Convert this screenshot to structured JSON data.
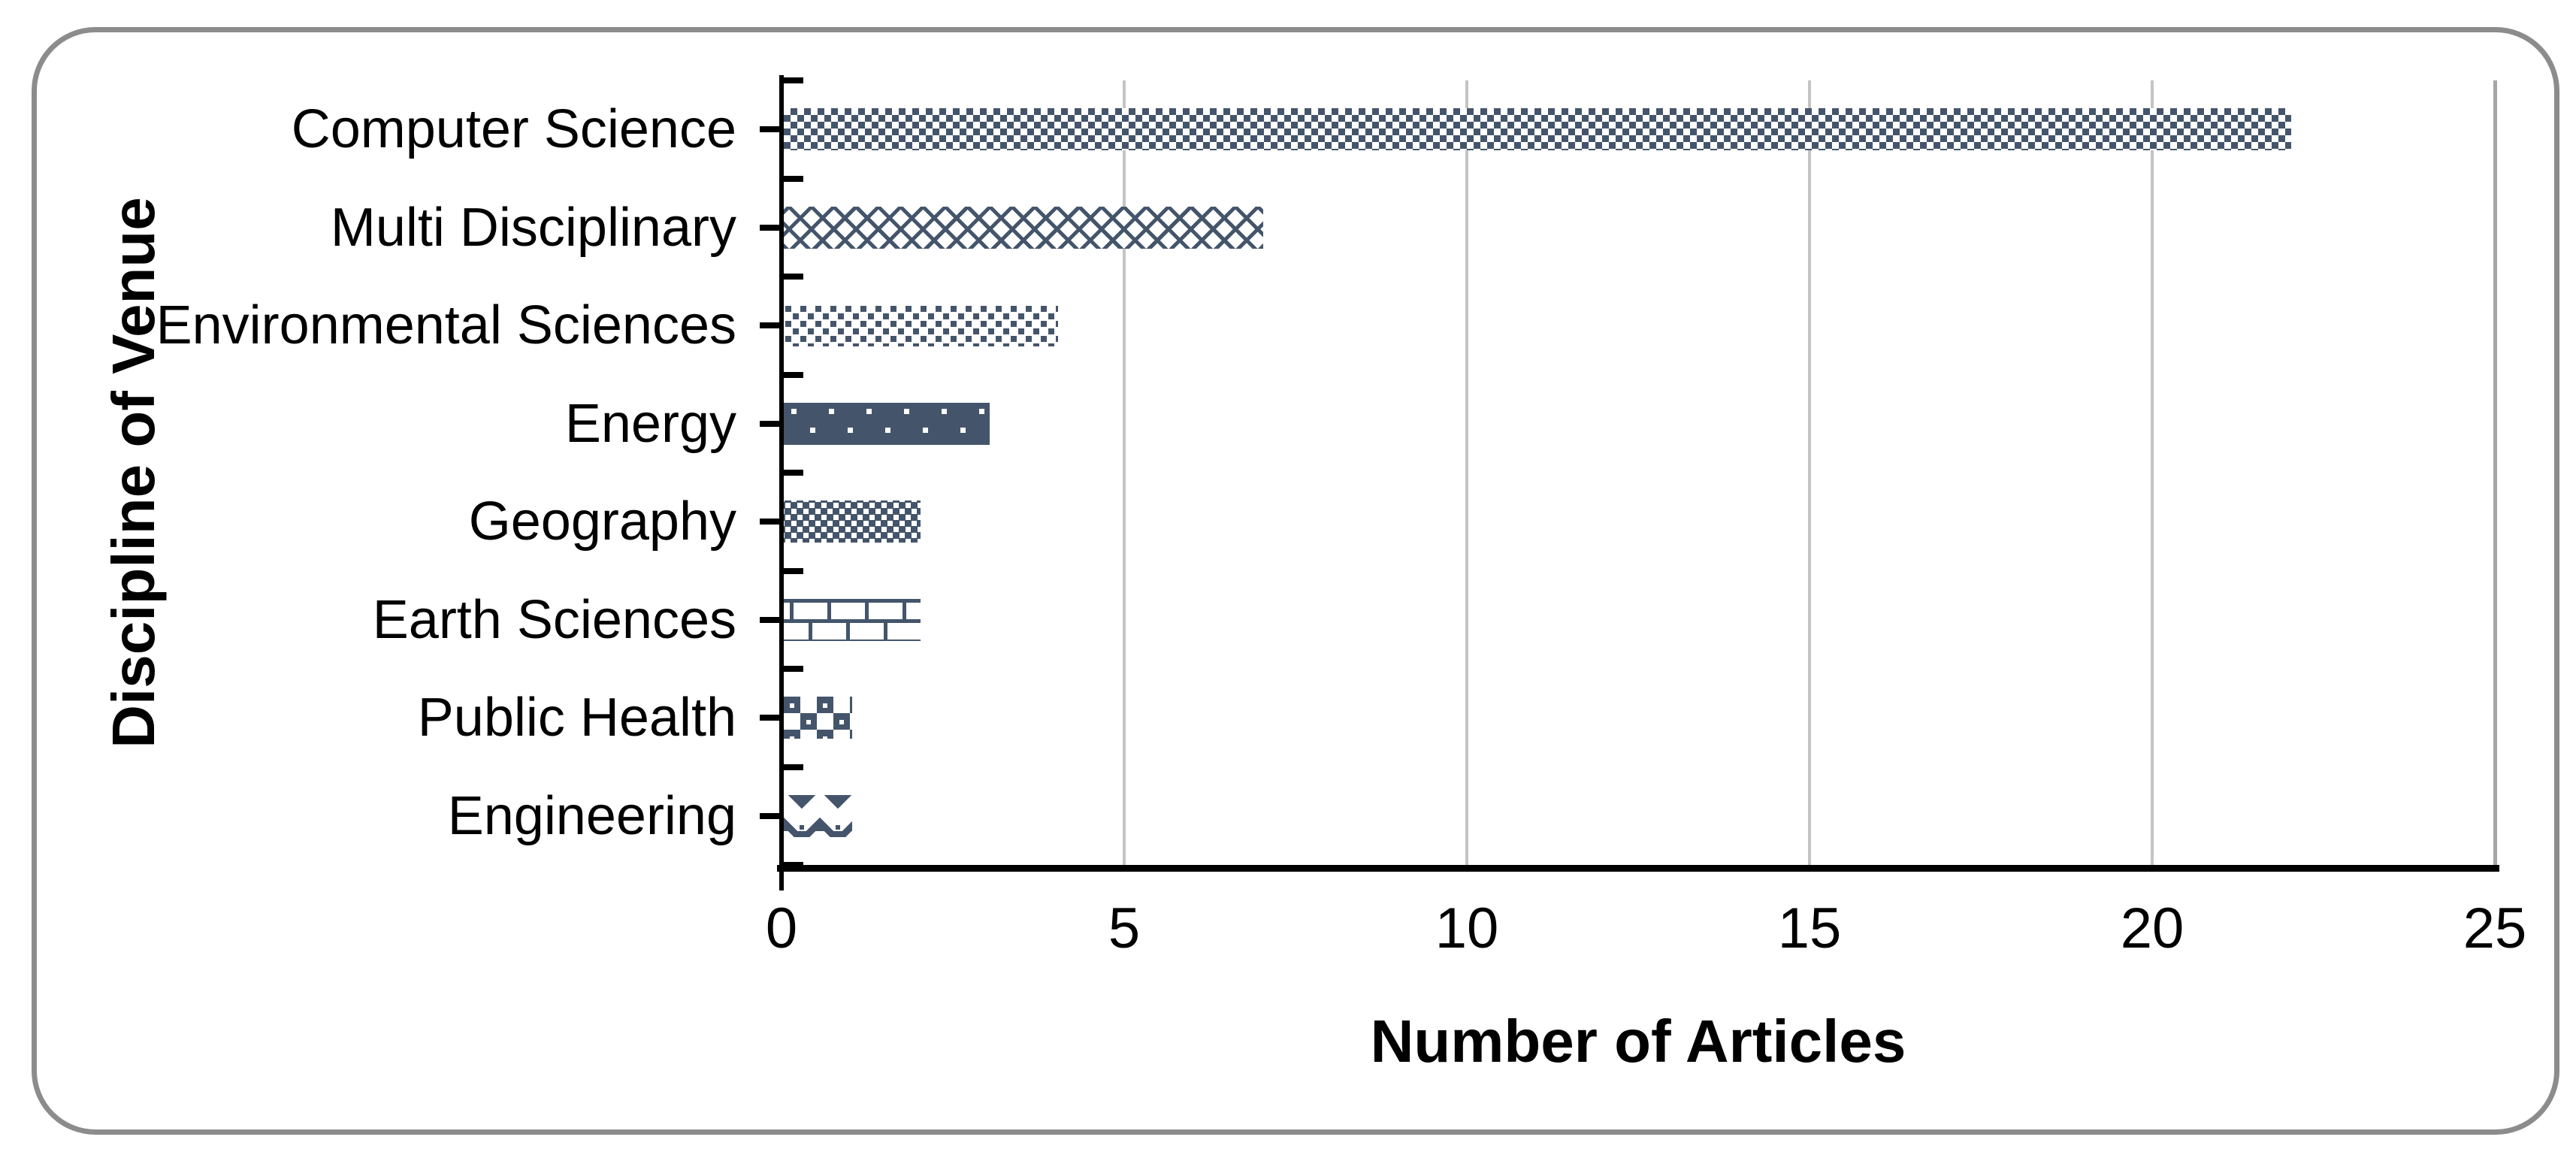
{
  "chart_data": {
    "type": "bar",
    "orientation": "horizontal",
    "title": "",
    "xlabel": "Number of Articles",
    "ylabel": "Discipline of Venue",
    "categories": [
      "Computer Science",
      "Multi Disciplinary",
      "Environmental Sciences",
      "Energy",
      "Geography",
      "Earth Sciences",
      "Public Health",
      "Engineering"
    ],
    "values": [
      22,
      7,
      4,
      3,
      2,
      2,
      1,
      1
    ],
    "xlim": [
      0,
      25
    ],
    "x_ticks": [
      0,
      5,
      10,
      15,
      20,
      25
    ],
    "grid": "vertical-gridlines-on",
    "legend": "none",
    "bar_patterns": [
      "small-checker",
      "diamond-lattice",
      "dotted-25",
      "dark-dotted-90",
      "dense-75",
      "brick",
      "large-confetti",
      "sphere-diamond"
    ],
    "bar_color": "#44556B",
    "gridline_color": "#C4C4C4",
    "plot_border_color": "#A6A6A6",
    "axis_color": "#000000",
    "frame_border_color": "#8C8C8C",
    "background_color": "#FFFFFF"
  }
}
